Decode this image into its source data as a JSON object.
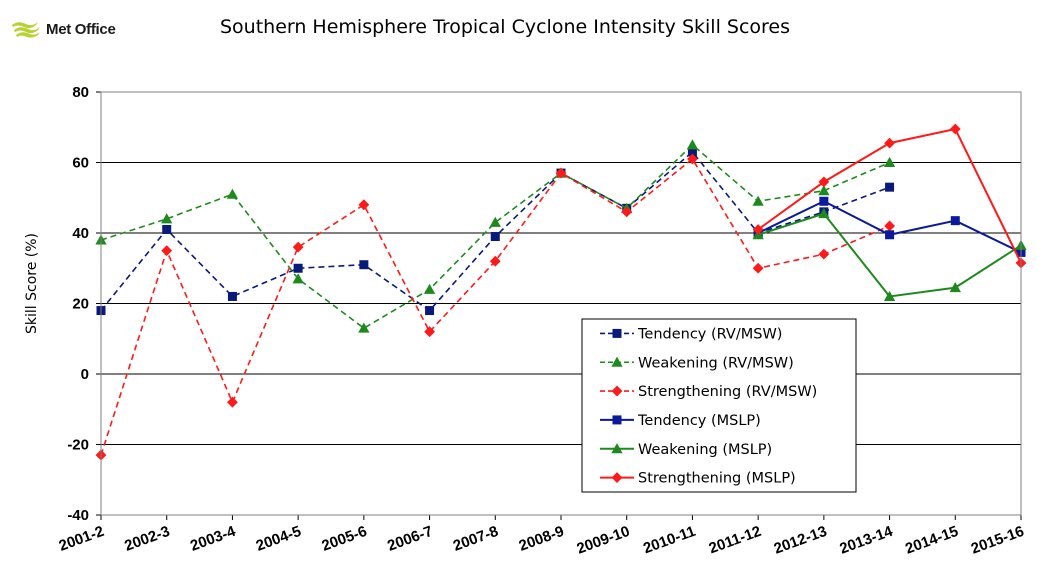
{
  "header": {
    "logo_text": "Met Office"
  },
  "chart_data": {
    "type": "line",
    "title": "Southern Hemisphere Tropical Cyclone Intensity Skill Scores",
    "xlabel": "",
    "ylabel": "Skill Score (%)",
    "ylim": [
      -40,
      80
    ],
    "yticks": [
      -40,
      -20,
      0,
      20,
      40,
      60,
      80
    ],
    "grid": "horizontal",
    "legend_position": "bottom-right",
    "categories": [
      "2001-2",
      "2002-3",
      "2003-4",
      "2004-5",
      "2005-6",
      "2006-7",
      "2007-8",
      "2008-9",
      "2009-10",
      "2010-11",
      "2011-12",
      "2012-13",
      "2013-14",
      "2014-15",
      "2015-16"
    ],
    "series": [
      {
        "name": "Tendency (RV/MSW)",
        "color": "#0a1a7a",
        "dash": true,
        "marker": "square",
        "values": [
          18,
          41,
          22,
          30,
          31,
          18,
          39,
          57,
          47,
          63,
          40,
          46,
          53,
          null,
          null
        ]
      },
      {
        "name": "Weakening  (RV/MSW)",
        "color": "#1e8a1e",
        "dash": true,
        "marker": "triangle",
        "values": [
          38,
          44,
          51,
          27,
          13,
          24,
          43,
          57,
          47,
          65,
          49,
          52,
          60,
          null,
          null
        ]
      },
      {
        "name": "Strengthening  (RV/MSW)",
        "color": "#ff1a1a",
        "dash": true,
        "marker": "diamond",
        "values": [
          -23,
          35,
          -8,
          36,
          48,
          12,
          32,
          57,
          46,
          61,
          30,
          34,
          42,
          null,
          null
        ]
      },
      {
        "name": "Tendency (MSLP)",
        "color": "#0a1a9a",
        "dash": false,
        "marker": "square",
        "values": [
          null,
          null,
          null,
          null,
          null,
          null,
          null,
          null,
          null,
          null,
          40,
          49,
          39.5,
          43.5,
          34.5
        ]
      },
      {
        "name": "Weakening (MSLP)",
        "color": "#1e8a1e",
        "dash": false,
        "marker": "triangle",
        "values": [
          null,
          null,
          null,
          null,
          null,
          null,
          null,
          null,
          null,
          null,
          39.5,
          45.5,
          22,
          24.5,
          36.5
        ]
      },
      {
        "name": "Strengthening (MSLP)",
        "color": "#ff1a1a",
        "dash": false,
        "marker": "diamond",
        "values": [
          null,
          null,
          null,
          null,
          null,
          null,
          null,
          null,
          null,
          null,
          41,
          54.5,
          65.5,
          69.5,
          31.5
        ]
      }
    ]
  }
}
